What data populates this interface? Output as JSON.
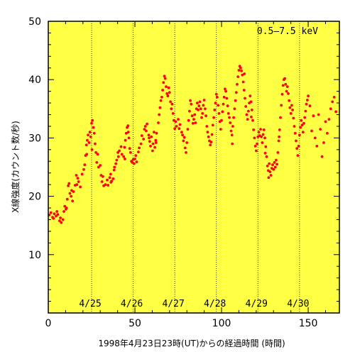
{
  "chart_data": {
    "type": "scatter",
    "title": "",
    "energy_band": "0.5–7.5 keV",
    "xlabel": "1998年4月23日23時(UT)からの経過時間 (時間)",
    "ylabel": "X線強度(カウント数/秒)",
    "xlim": [
      0,
      168
    ],
    "ylim": [
      0,
      50
    ],
    "xticks": [
      0,
      50,
      100,
      150
    ],
    "yticks": [
      10,
      20,
      30,
      40,
      50
    ],
    "grid": false,
    "background_color": "#ffff44",
    "point_color": "#ff0000",
    "day_markers": [
      {
        "label": "4/25",
        "x": 25
      },
      {
        "label": "4/26",
        "x": 49
      },
      {
        "label": "4/27",
        "x": 73
      },
      {
        "label": "4/28",
        "x": 97
      },
      {
        "label": "4/29",
        "x": 121
      },
      {
        "label": "4/30",
        "x": 145
      }
    ],
    "series": [
      {
        "name": "",
        "points": [
          [
            0.5,
            16.8
          ],
          [
            1.5,
            17.2
          ],
          [
            2.5,
            16.4
          ],
          [
            3.5,
            17.0
          ],
          [
            4.5,
            16.6
          ],
          [
            5.5,
            16.9
          ],
          [
            6.5,
            15.8
          ],
          [
            7.0,
            16.3
          ],
          [
            7.5,
            15.5
          ],
          [
            8.5,
            16.0
          ],
          [
            9.0,
            17.4
          ],
          [
            9.5,
            18.3
          ],
          [
            10.5,
            18.0
          ],
          [
            11.0,
            19.5
          ],
          [
            11.5,
            21.8
          ],
          [
            12.0,
            22.2
          ],
          [
            12.5,
            20.5
          ],
          [
            13.5,
            21.0
          ],
          [
            14.0,
            19.2
          ],
          [
            14.5,
            20.8
          ],
          [
            15.5,
            21.9
          ],
          [
            16.5,
            22.0
          ],
          [
            17.0,
            23.1
          ],
          [
            17.5,
            22.5
          ],
          [
            18.5,
            21.6
          ],
          [
            19.5,
            23.8
          ],
          [
            20.5,
            24.6
          ],
          [
            21.0,
            25.4
          ],
          [
            21.5,
            27.0
          ],
          [
            22.0,
            28.8
          ],
          [
            22.5,
            29.6
          ],
          [
            23.0,
            30.5
          ],
          [
            23.5,
            29.2
          ],
          [
            24.0,
            31.0
          ],
          [
            24.5,
            30.2
          ],
          [
            25.0,
            32.5
          ],
          [
            25.5,
            33.0
          ],
          [
            26.0,
            31.8
          ],
          [
            26.5,
            30.8
          ],
          [
            27.0,
            29.0
          ],
          [
            27.5,
            27.5
          ],
          [
            28.0,
            25.8
          ],
          [
            28.5,
            27.2
          ],
          [
            29.0,
            25.0
          ],
          [
            30.0,
            25.3
          ],
          [
            31.0,
            22.5
          ],
          [
            31.5,
            23.4
          ],
          [
            32.0,
            21.8
          ],
          [
            33.0,
            22.0
          ],
          [
            34.0,
            22.8
          ],
          [
            34.5,
            21.9
          ],
          [
            35.5,
            23.2
          ],
          [
            36.0,
            23.8
          ],
          [
            36.5,
            22.6
          ],
          [
            37.5,
            23.0
          ],
          [
            38.0,
            24.5
          ],
          [
            39.0,
            25.6
          ],
          [
            39.5,
            26.2
          ],
          [
            40.5,
            26.8
          ],
          [
            41.0,
            27.8
          ],
          [
            42.0,
            28.5
          ],
          [
            42.5,
            27.2
          ],
          [
            43.5,
            26.8
          ],
          [
            44.0,
            28.4
          ],
          [
            44.5,
            29.6
          ],
          [
            45.0,
            30.8
          ],
          [
            45.5,
            31.8
          ],
          [
            46.0,
            32.1
          ],
          [
            46.5,
            30.0
          ],
          [
            47.0,
            28.2
          ],
          [
            47.5,
            27.5
          ],
          [
            48.0,
            26.0
          ],
          [
            48.5,
            25.8
          ],
          [
            49.0,
            26.3
          ],
          [
            49.5,
            25.6
          ],
          [
            50.0,
            26.4
          ],
          [
            50.5,
            27.0
          ],
          [
            51.0,
            25.9
          ],
          [
            52.0,
            27.6
          ],
          [
            52.5,
            28.3
          ],
          [
            53.5,
            29.0
          ],
          [
            54.0,
            30.4
          ],
          [
            55.0,
            29.8
          ],
          [
            55.5,
            31.5
          ],
          [
            56.0,
            32.0
          ],
          [
            56.5,
            31.2
          ],
          [
            57.0,
            32.4
          ],
          [
            58.0,
            30.5
          ],
          [
            58.5,
            29.4
          ],
          [
            59.0,
            28.6
          ],
          [
            59.5,
            30.2
          ],
          [
            60.5,
            29.0
          ],
          [
            61.0,
            31.0
          ],
          [
            61.5,
            28.4
          ],
          [
            62.0,
            29.6
          ],
          [
            62.5,
            30.8
          ],
          [
            63.5,
            32.6
          ],
          [
            64.0,
            34.0
          ],
          [
            64.5,
            35.2
          ],
          [
            65.0,
            36.4
          ],
          [
            65.5,
            37.0
          ],
          [
            66.0,
            38.2
          ],
          [
            66.5,
            39.5
          ],
          [
            67.0,
            40.6
          ],
          [
            67.5,
            40.2
          ],
          [
            68.0,
            38.8
          ],
          [
            68.5,
            37.6
          ],
          [
            69.0,
            37.2
          ],
          [
            69.5,
            38.6
          ],
          [
            70.0,
            37.8
          ],
          [
            70.5,
            36.2
          ],
          [
            71.0,
            35.0
          ],
          [
            71.5,
            35.8
          ],
          [
            72.0,
            34.2
          ],
          [
            72.5,
            33.0
          ],
          [
            73.0,
            31.6
          ],
          [
            73.5,
            32.8
          ],
          [
            74.0,
            32.0
          ],
          [
            75.0,
            33.2
          ],
          [
            75.5,
            31.6
          ],
          [
            76.0,
            32.3
          ],
          [
            77.0,
            31.0
          ],
          [
            77.5,
            30.5
          ],
          [
            78.0,
            29.5
          ],
          [
            78.5,
            30.1
          ],
          [
            79.0,
            28.3
          ],
          [
            79.5,
            27.5
          ],
          [
            80.0,
            29.2
          ],
          [
            80.5,
            31.5
          ],
          [
            81.0,
            33.0
          ],
          [
            81.5,
            34.6
          ],
          [
            82.0,
            36.4
          ],
          [
            82.5,
            35.8
          ],
          [
            83.0,
            33.8
          ],
          [
            83.5,
            32.5
          ],
          [
            84.0,
            33.2
          ],
          [
            84.5,
            34.0
          ],
          [
            85.0,
            32.6
          ],
          [
            85.5,
            35.0
          ],
          [
            86.0,
            36.0
          ],
          [
            86.5,
            34.8
          ],
          [
            87.0,
            35.5
          ],
          [
            87.5,
            36.2
          ],
          [
            88.0,
            35.0
          ],
          [
            88.5,
            33.5
          ],
          [
            89.0,
            34.2
          ],
          [
            89.5,
            35.6
          ],
          [
            90.0,
            36.5
          ],
          [
            90.5,
            35.0
          ],
          [
            91.0,
            33.8
          ],
          [
            91.5,
            32.0
          ],
          [
            92.0,
            31.0
          ],
          [
            92.5,
            30.2
          ],
          [
            93.0,
            29.5
          ],
          [
            93.5,
            28.8
          ],
          [
            94.0,
            29.3
          ],
          [
            94.5,
            30.6
          ],
          [
            95.0,
            32.2
          ],
          [
            95.5,
            33.5
          ],
          [
            96.0,
            34.8
          ],
          [
            96.5,
            36.0
          ],
          [
            97.0,
            37.5
          ],
          [
            97.5,
            37.0
          ],
          [
            98.0,
            35.6
          ],
          [
            98.5,
            34.2
          ],
          [
            99.0,
            32.8
          ],
          [
            99.5,
            31.5
          ],
          [
            100.0,
            33.0
          ],
          [
            100.5,
            34.5
          ],
          [
            101.0,
            35.8
          ],
          [
            101.5,
            37.0
          ],
          [
            102.0,
            38.4
          ],
          [
            102.5,
            38.0
          ],
          [
            103.0,
            36.8
          ],
          [
            103.5,
            35.5
          ],
          [
            104.0,
            34.2
          ],
          [
            104.5,
            33.5
          ],
          [
            105.0,
            32.6
          ],
          [
            105.5,
            31.2
          ],
          [
            106.0,
            30.5
          ],
          [
            106.5,
            32.0
          ],
          [
            107.0,
            33.5
          ],
          [
            107.5,
            35.0
          ],
          [
            108.0,
            36.4
          ],
          [
            108.5,
            37.8
          ],
          [
            109.0,
            39.2
          ],
          [
            109.5,
            40.5
          ],
          [
            110.0,
            41.6
          ],
          [
            110.5,
            42.3
          ],
          [
            111.0,
            42.0
          ],
          [
            111.5,
            41.5
          ],
          [
            112.0,
            40.8
          ],
          [
            112.5,
            39.6
          ],
          [
            113.0,
            38.2
          ],
          [
            113.5,
            36.8
          ],
          [
            114.0,
            35.4
          ],
          [
            114.5,
            34.0
          ],
          [
            115.0,
            33.2
          ],
          [
            115.5,
            34.6
          ],
          [
            116.0,
            36.0
          ],
          [
            116.5,
            37.2
          ],
          [
            117.0,
            36.2
          ],
          [
            117.5,
            34.8
          ],
          [
            118.0,
            33.0
          ],
          [
            118.5,
            31.4
          ],
          [
            119.0,
            30.0
          ],
          [
            119.5,
            28.6
          ],
          [
            120.0,
            27.8
          ],
          [
            120.5,
            29.0
          ],
          [
            121.0,
            30.2
          ],
          [
            121.5,
            31.0
          ],
          [
            122.0,
            30.4
          ],
          [
            122.5,
            31.5
          ],
          [
            123.0,
            30.2
          ],
          [
            123.5,
            29.2
          ],
          [
            124.0,
            30.6
          ],
          [
            124.5,
            31.4
          ],
          [
            125.0,
            30.0
          ],
          [
            125.5,
            28.5
          ],
          [
            126.0,
            26.8
          ],
          [
            126.5,
            25.2
          ],
          [
            127.0,
            24.4
          ],
          [
            127.5,
            25.6
          ],
          [
            128.0,
            24.2
          ],
          [
            128.5,
            23.6
          ],
          [
            129.0,
            24.8
          ],
          [
            129.5,
            25.4
          ],
          [
            130.0,
            24.6
          ],
          [
            130.5,
            25.8
          ],
          [
            131.0,
            25.0
          ],
          [
            131.5,
            26.2
          ],
          [
            132.0,
            25.5
          ],
          [
            132.5,
            27.5
          ],
          [
            133.0,
            29.5
          ],
          [
            133.5,
            31.4
          ],
          [
            134.0,
            33.5
          ],
          [
            134.5,
            35.6
          ],
          [
            135.0,
            37.5
          ],
          [
            135.5,
            39.0
          ],
          [
            136.0,
            40.0
          ],
          [
            136.5,
            40.2
          ],
          [
            137.0,
            39.2
          ],
          [
            137.5,
            38.0
          ],
          [
            138.0,
            38.8
          ],
          [
            138.5,
            37.6
          ],
          [
            139.0,
            36.4
          ],
          [
            139.5,
            35.2
          ],
          [
            140.0,
            34.2
          ],
          [
            140.5,
            35.6
          ],
          [
            141.0,
            34.8
          ],
          [
            141.5,
            33.4
          ],
          [
            142.0,
            32.0
          ],
          [
            142.5,
            30.8
          ],
          [
            143.0,
            29.5
          ],
          [
            143.5,
            28.2
          ],
          [
            144.0,
            27.0
          ],
          [
            144.5,
            28.6
          ],
          [
            145.0,
            30.5
          ],
          [
            145.5,
            31.8
          ],
          [
            146.0,
            33.0
          ],
          [
            146.5,
            32.2
          ],
          [
            147.0,
            31.0
          ],
          [
            147.5,
            32.5
          ],
          [
            148.0,
            33.5
          ],
          [
            148.5,
            34.6
          ],
          [
            149.0,
            35.8
          ],
          [
            149.5,
            36.5
          ],
          [
            150.0,
            37.2
          ],
          [
            151.0,
            35.5
          ],
          [
            152.0,
            31.2
          ],
          [
            153.0,
            33.8
          ],
          [
            154.0,
            30.0
          ],
          [
            155.0,
            28.6
          ],
          [
            156.0,
            34.0
          ],
          [
            157.0,
            31.5
          ],
          [
            158.0,
            26.8
          ],
          [
            159.0,
            29.2
          ],
          [
            160.0,
            32.8
          ],
          [
            161.0,
            30.8
          ],
          [
            162.0,
            33.2
          ],
          [
            163.0,
            35.0
          ],
          [
            164.0,
            36.2
          ],
          [
            165.0,
            37.0
          ],
          [
            166.0,
            34.5
          ],
          [
            106.2,
            29.0
          ],
          [
            113.2,
            41.0
          ],
          [
            117.2,
            33.6
          ],
          [
            125.2,
            27.4
          ],
          [
            127.2,
            23.2
          ],
          [
            133.2,
            30.2
          ],
          [
            62.2,
            29.2
          ],
          [
            60.2,
            27.8
          ],
          [
            58.2,
            30.0
          ],
          [
            46.2,
            31.0
          ],
          [
            44.2,
            26.4
          ],
          [
            40.2,
            27.5
          ],
          [
            38.2,
            25.0
          ],
          [
            36.2,
            22.4
          ],
          [
            30.5,
            23.6
          ],
          [
            25.2,
            28.0
          ],
          [
            22.2,
            27.2
          ],
          [
            16.2,
            23.6
          ],
          [
            13.2,
            20.0
          ],
          [
            10.2,
            17.8
          ],
          [
            5.0,
            17.4
          ],
          [
            3.0,
            16.2
          ]
        ]
      }
    ]
  }
}
